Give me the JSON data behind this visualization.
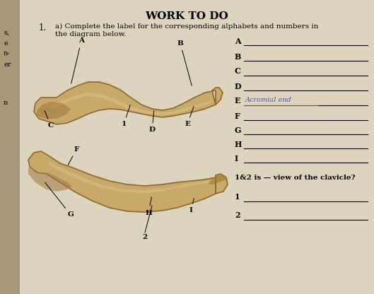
{
  "title": "WORK TO DO",
  "bg_color": "#d8cdb8",
  "left_strip_color": "#b8a888",
  "bone_fill": "#c8a96a",
  "bone_dark": "#8a6a30",
  "bone_mid": "#b89050",
  "bone_light": "#e0c890",
  "answer_line_labels": [
    "A",
    "B",
    "C",
    "D",
    "E",
    "F",
    "G",
    "H",
    "I"
  ],
  "e_answer": "Acromial end",
  "bottom_question": "1&2 is — view of the clavicle?",
  "bottom_labels": [
    "1",
    "2"
  ],
  "left_margin_labels": [
    "s,",
    "e",
    "n-",
    "er",
    "n"
  ]
}
